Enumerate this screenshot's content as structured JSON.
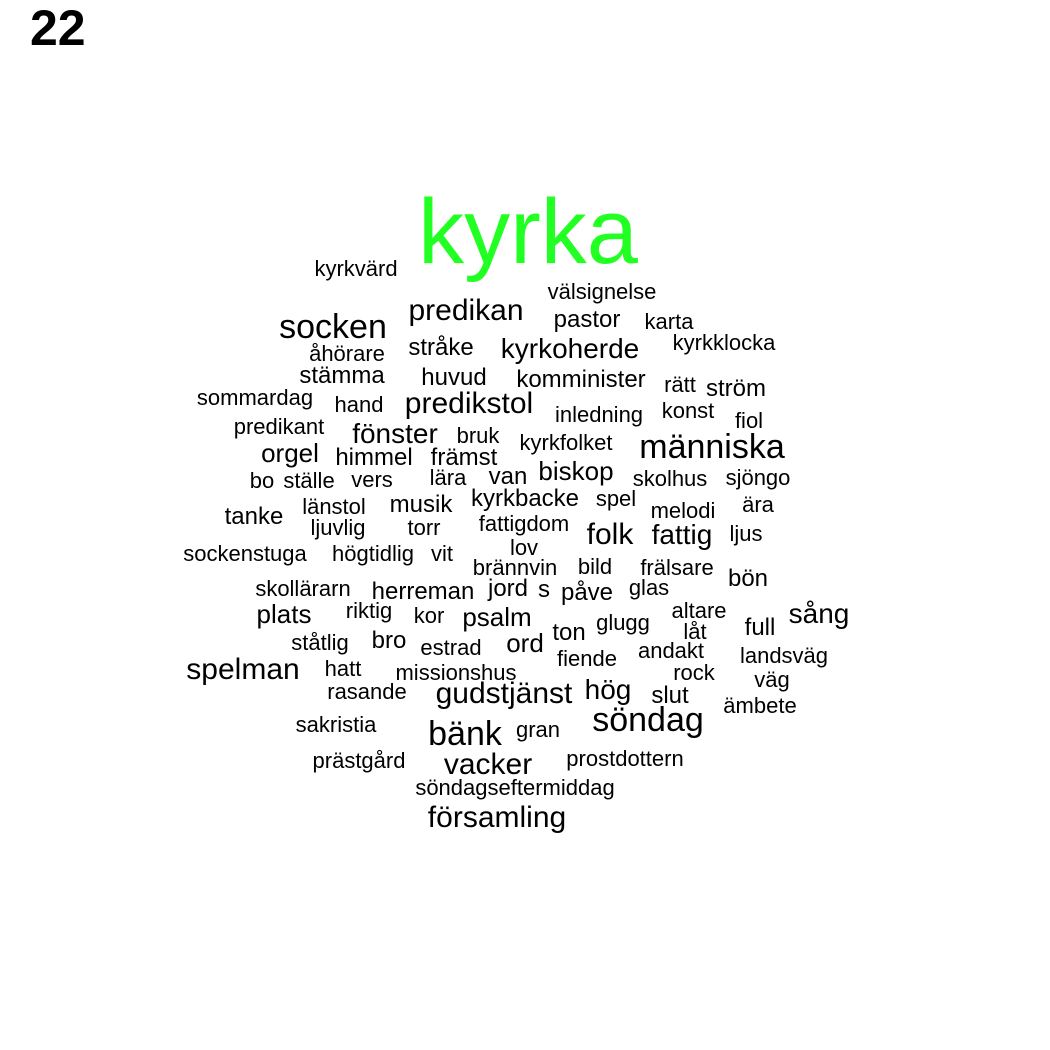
{
  "panel_number": "22",
  "highlight_color": "#22ff22",
  "text_color": "#000000",
  "words": [
    {
      "text": "kyrka",
      "highlight": true
    },
    {
      "text": "kyrkvärd"
    },
    {
      "text": "välsignelse"
    },
    {
      "text": "predikan"
    },
    {
      "text": "socken"
    },
    {
      "text": "pastor"
    },
    {
      "text": "karta"
    },
    {
      "text": "kyrkklocka"
    },
    {
      "text": "åhörare"
    },
    {
      "text": "stråke"
    },
    {
      "text": "kyrkoherde"
    },
    {
      "text": "stämma"
    },
    {
      "text": "huvud"
    },
    {
      "text": "komminister"
    },
    {
      "text": "rätt"
    },
    {
      "text": "ström"
    },
    {
      "text": "sommardag"
    },
    {
      "text": "hand"
    },
    {
      "text": "predikstol"
    },
    {
      "text": "inledning"
    },
    {
      "text": "konst"
    },
    {
      "text": "fiol"
    },
    {
      "text": "predikant"
    },
    {
      "text": "fönster"
    },
    {
      "text": "bruk"
    },
    {
      "text": "kyrkfolket"
    },
    {
      "text": "människa"
    },
    {
      "text": "orgel"
    },
    {
      "text": "himmel"
    },
    {
      "text": "främst"
    },
    {
      "text": "ställe"
    },
    {
      "text": "vers"
    },
    {
      "text": "bo"
    },
    {
      "text": "lära"
    },
    {
      "text": "van"
    },
    {
      "text": "biskop"
    },
    {
      "text": "skolhus"
    },
    {
      "text": "sjöngo"
    },
    {
      "text": "länstol"
    },
    {
      "text": "musik"
    },
    {
      "text": "kyrkbacke"
    },
    {
      "text": "spel"
    },
    {
      "text": "melodi"
    },
    {
      "text": "ära"
    },
    {
      "text": "tanke"
    },
    {
      "text": "ljuvlig"
    },
    {
      "text": "torr"
    },
    {
      "text": "fattigdom"
    },
    {
      "text": "folk"
    },
    {
      "text": "fattig"
    },
    {
      "text": "ljus"
    },
    {
      "text": "sockenstuga"
    },
    {
      "text": "högtidlig"
    },
    {
      "text": "vit"
    },
    {
      "text": "lov"
    },
    {
      "text": "brännvin"
    },
    {
      "text": "bild"
    },
    {
      "text": "frälsare"
    },
    {
      "text": "bön"
    },
    {
      "text": "skollärarn"
    },
    {
      "text": "herreman"
    },
    {
      "text": "jord"
    },
    {
      "text": "s"
    },
    {
      "text": "påve"
    },
    {
      "text": "glas"
    },
    {
      "text": "plats"
    },
    {
      "text": "riktig"
    },
    {
      "text": "kor"
    },
    {
      "text": "psalm"
    },
    {
      "text": "altare"
    },
    {
      "text": "sång"
    },
    {
      "text": "glugg"
    },
    {
      "text": "låt"
    },
    {
      "text": "full"
    },
    {
      "text": "ståtlig"
    },
    {
      "text": "bro"
    },
    {
      "text": "estrad"
    },
    {
      "text": "ord"
    },
    {
      "text": "ton"
    },
    {
      "text": "andakt"
    },
    {
      "text": "landsväg"
    },
    {
      "text": "spelman"
    },
    {
      "text": "hatt"
    },
    {
      "text": "missionshus"
    },
    {
      "text": "fiende"
    },
    {
      "text": "rock"
    },
    {
      "text": "väg"
    },
    {
      "text": "rasande"
    },
    {
      "text": "gudstjänst"
    },
    {
      "text": "hög"
    },
    {
      "text": "slut"
    },
    {
      "text": "ämbete"
    },
    {
      "text": "sakristia"
    },
    {
      "text": "söndag"
    },
    {
      "text": "bänk"
    },
    {
      "text": "gran"
    },
    {
      "text": "prästgård"
    },
    {
      "text": "vacker"
    },
    {
      "text": "prostdottern"
    },
    {
      "text": "söndagseftermiddag"
    },
    {
      "text": "församling"
    }
  ]
}
